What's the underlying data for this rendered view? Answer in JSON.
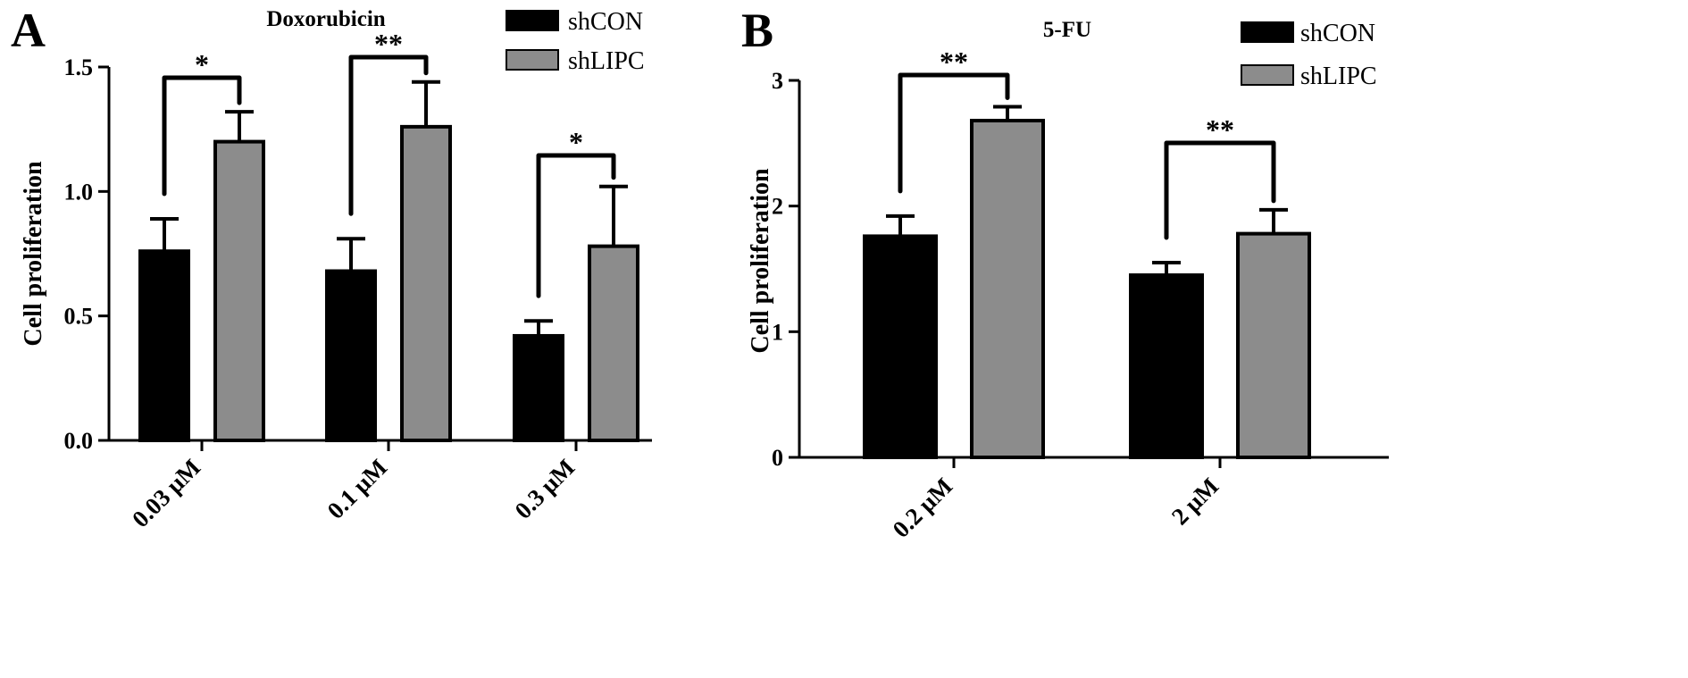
{
  "chart_data": [
    {
      "type": "bar",
      "panel_label": "A",
      "title": "Doxorubicin",
      "xlabel": "",
      "ylabel": "Cell proliferation",
      "ylim": [
        0,
        1.5
      ],
      "yticks": [
        0.0,
        0.5,
        1.0,
        1.5
      ],
      "ytick_labels": [
        "0.0",
        "0.5",
        "1.0",
        "1.5"
      ],
      "categories": [
        "0.03 μM",
        "0.1 μM",
        "0.3 μM"
      ],
      "series": [
        {
          "name": "shCON",
          "color": "#000000",
          "values": [
            0.76,
            0.68,
            0.42
          ],
          "errors": [
            0.13,
            0.13,
            0.06
          ]
        },
        {
          "name": "shLIPC",
          "color": "#8c8c8c",
          "values": [
            1.2,
            1.26,
            0.78
          ],
          "errors": [
            0.12,
            0.18,
            0.24
          ]
        }
      ],
      "significance": [
        "*",
        "**",
        "*"
      ],
      "legend_position": "top-right",
      "grid": false
    },
    {
      "type": "bar",
      "panel_label": "B",
      "title": "5-FU",
      "xlabel": "",
      "ylabel": "Cell proliferation",
      "ylim": [
        0,
        3
      ],
      "yticks": [
        0,
        1,
        2,
        3
      ],
      "ytick_labels": [
        "0",
        "1",
        "2",
        "3"
      ],
      "categories": [
        "0.2 μM",
        "2 μM"
      ],
      "series": [
        {
          "name": "shCON",
          "color": "#000000",
          "values": [
            1.76,
            1.45
          ],
          "errors": [
            0.16,
            0.1
          ]
        },
        {
          "name": "shLIPC",
          "color": "#8c8c8c",
          "values": [
            2.68,
            1.78
          ],
          "errors": [
            0.11,
            0.19
          ]
        }
      ],
      "significance": [
        "**",
        "**"
      ],
      "legend_position": "top-right",
      "grid": false
    }
  ]
}
